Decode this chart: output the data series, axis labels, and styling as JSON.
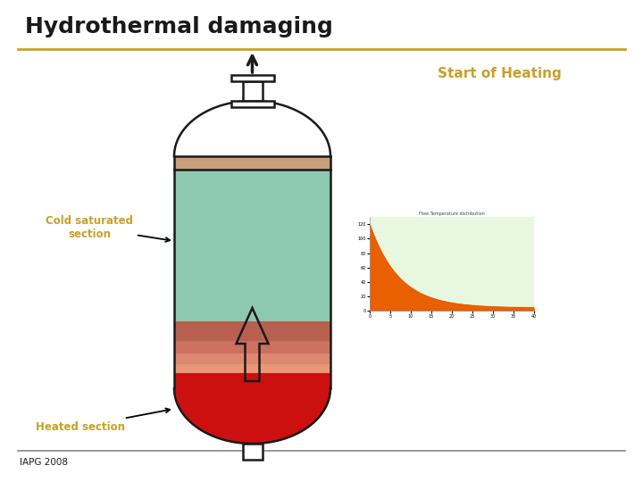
{
  "title": "Hydrothermal damaging",
  "title_color": "#1a1a1a",
  "title_fontsize": 18,
  "separator_color": "#c8a028",
  "start_of_heating_text": "Start of Heating",
  "start_of_heating_color": "#c8a028",
  "cold_section_text": "Cold saturated\nsection",
  "cold_section_color": "#c8a028",
  "heated_section_text": "Heated section",
  "heated_section_color": "#c8a028",
  "iapg_text": "IAPG 2008",
  "iapg_color": "#1a1a1a",
  "bg_color": "#ffffff",
  "vessel_outline_color": "#1a1a1a",
  "vessel_fill_top_color": "#c8a07a",
  "vessel_fill_cold_color": "#8dc8b0",
  "vessel_fill_warm1_color": "#b86050",
  "vessel_fill_warm2_color": "#cc7060",
  "vessel_fill_warm3_color": "#dd8870",
  "vessel_fill_warm4_color": "#e89878",
  "vessel_fill_hot_color": "#cc1010",
  "arrow_color": "#1a1a1a",
  "mini_chart_bg": "#e8f8e0",
  "mini_chart_fill": "#e86000",
  "bottom_line_color": "#888888"
}
